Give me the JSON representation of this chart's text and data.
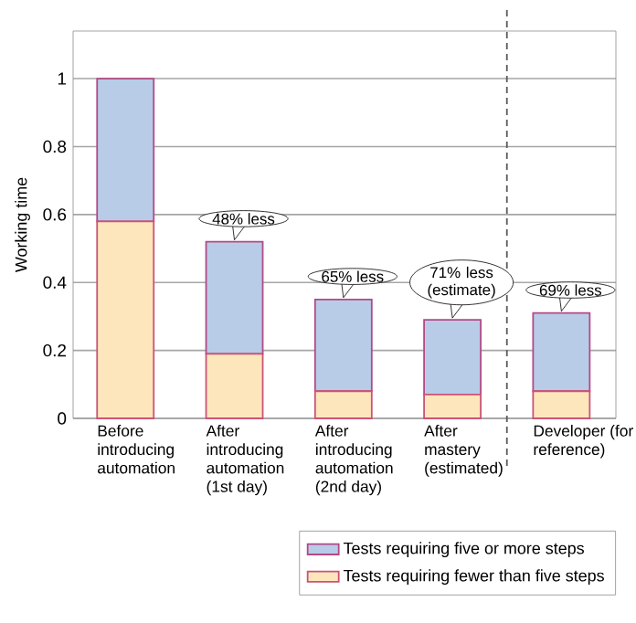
{
  "chart_data": {
    "type": "bar",
    "stacked": true,
    "ylabel": "Working time",
    "categories": [
      "Before introducing automation",
      "After introducing automation (1st day)",
      "After introducing automation (2nd day)",
      "After mastery (estimated)",
      "Developer (for reference)"
    ],
    "series": [
      {
        "name": "Tests requiring fewer than five steps",
        "color": "#fde6bc",
        "values": [
          0.58,
          0.19,
          0.08,
          0.07,
          0.08
        ]
      },
      {
        "name": "Tests requiring five or more steps",
        "color": "#b8cce8",
        "values": [
          0.42,
          0.33,
          0.27,
          0.22,
          0.23
        ]
      }
    ],
    "ylim": [
      0,
      1.14
    ],
    "yticks": [
      0,
      0.2,
      0.4,
      0.6,
      0.8,
      1
    ],
    "grid": "y",
    "legend": "bottom right",
    "annotations": [
      {
        "text": "48% less",
        "x": "After introducing automation (1st day)",
        "y": 0.52
      },
      {
        "text": "65% less",
        "x": "After introducing automation (2nd day)",
        "y": 0.35
      },
      {
        "text": "71% less (estimate)",
        "x": "After mastery (estimated)",
        "y": 0.29
      },
      {
        "text": "69% less",
        "x": "Developer (for reference)",
        "y": 0.31
      }
    ]
  }
}
